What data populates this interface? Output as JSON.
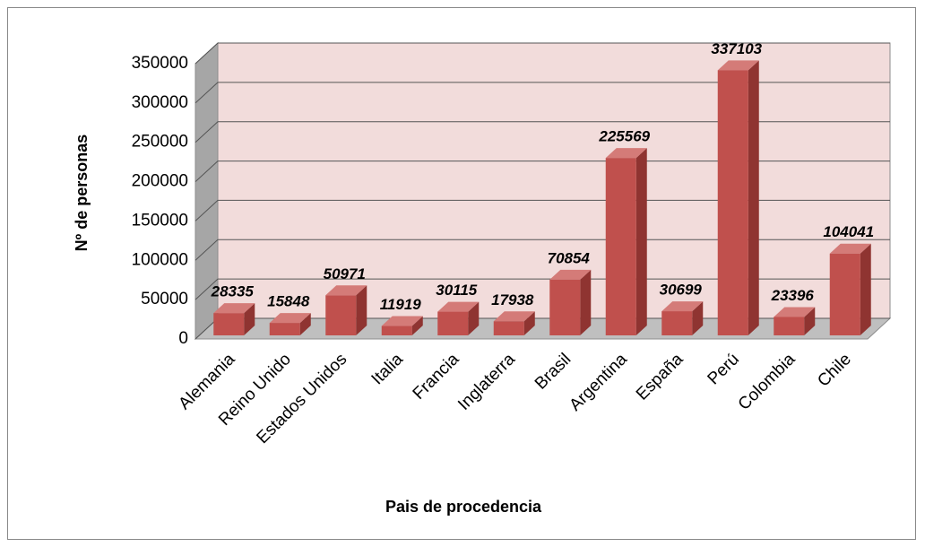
{
  "chart_data": {
    "type": "bar3d",
    "x_label": "Pais de procedencia",
    "y_label": "Nº de personas",
    "categories": [
      "Alemania",
      "Reino Unido",
      "Estados Unidos",
      "Italia",
      "Francia",
      "Inglaterra",
      "Brasil",
      "Argentina",
      "España",
      "Perú",
      "Colombia",
      "Chile"
    ],
    "values": [
      28335,
      15848,
      50971,
      11919,
      30115,
      17938,
      70854,
      225569,
      30699,
      337103,
      23396,
      104041
    ],
    "color": "#c0504d",
    "ylim": [
      0,
      350000
    ],
    "yticks": [
      0,
      50000,
      100000,
      150000,
      200000,
      250000,
      300000,
      350000
    ],
    "grid": true
  }
}
